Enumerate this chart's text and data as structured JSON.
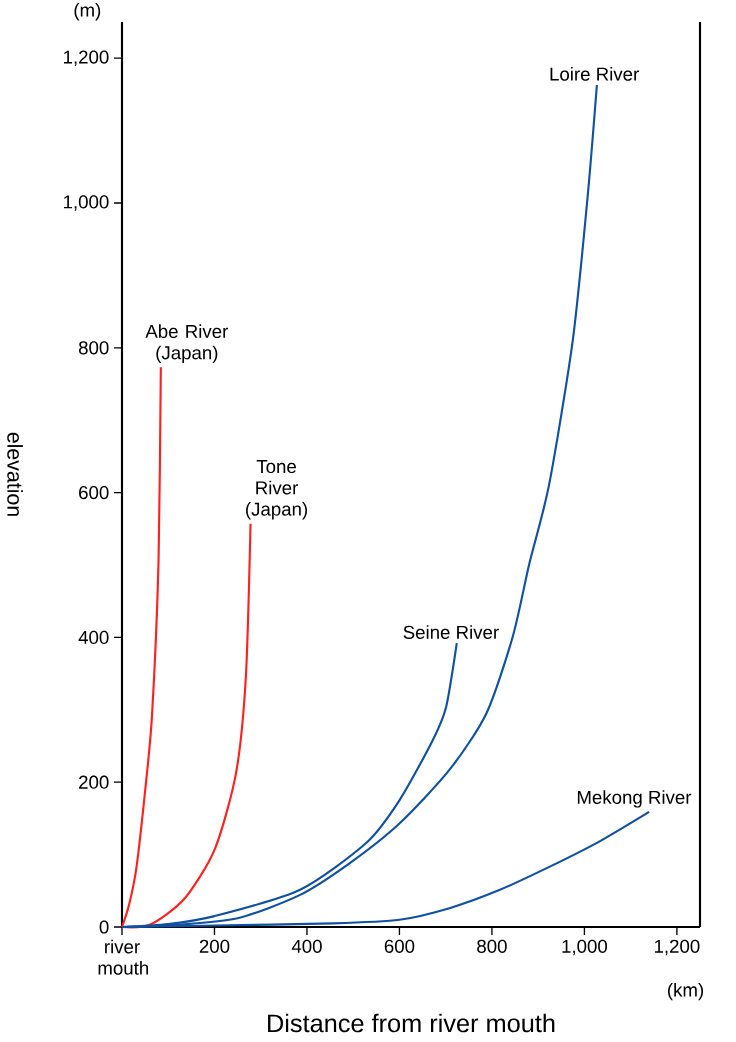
{
  "chart_data": {
    "type": "line",
    "xlabel": "Distance from river mouth",
    "ylabel": "elevation",
    "annotations": [
      "(m)",
      "(km)"
    ],
    "xlim": [
      0,
      1250
    ],
    "ylim": [
      0,
      1250
    ],
    "xticks": [
      {
        "value": 0,
        "label": "river mouth"
      },
      200,
      400,
      600,
      800,
      {
        "value": 1000,
        "label": "1,000"
      },
      {
        "value": 1200,
        "label": "1,200"
      }
    ],
    "yticks": [
      0,
      200,
      400,
      600,
      800,
      {
        "value": 1000,
        "label": "1,000"
      },
      {
        "value": 1200,
        "label": "1,200"
      }
    ],
    "grid": false,
    "marker": "none",
    "line_style": "solid",
    "series": [
      {
        "name": "Abe River (Japan)",
        "color": "#ff2020",
        "x": [
          0,
          15,
          31,
          50,
          65,
          79,
          84
        ],
        "values": [
          0,
          30,
          81,
          188,
          293,
          505,
          773
        ]
      },
      {
        "name": "Tone River (Japan)",
        "color": "#ff2020",
        "x": [
          0,
          60,
          135,
          201,
          247,
          268,
          278
        ],
        "values": [
          0,
          3,
          39,
          108,
          214,
          347,
          557
        ]
      },
      {
        "name": "Seine River",
        "color": "#1050a0",
        "x": [
          0,
          100,
          200,
          384,
          528,
          600,
          672,
          701,
          724
        ],
        "values": [
          0,
          4,
          15,
          51,
          116,
          175,
          258,
          304,
          392
        ]
      },
      {
        "name": "Loire River",
        "color": "#1050a0",
        "x": [
          0,
          120,
          250,
          384,
          492,
          600,
          708,
          788,
          845,
          881,
          924,
          975,
          1007,
          1027
        ],
        "values": [
          0,
          3,
          12,
          44,
          88,
          143,
          217,
          295,
          401,
          502,
          612,
          811,
          1009,
          1163
        ]
      },
      {
        "name": "Mekong River",
        "color": "#1050a0",
        "x": [
          0,
          200,
          456,
          600,
          708,
          816,
          924,
          1032,
          1140
        ],
        "values": [
          0,
          2,
          5,
          10,
          26,
          51,
          83,
          118,
          159
        ]
      }
    ]
  }
}
